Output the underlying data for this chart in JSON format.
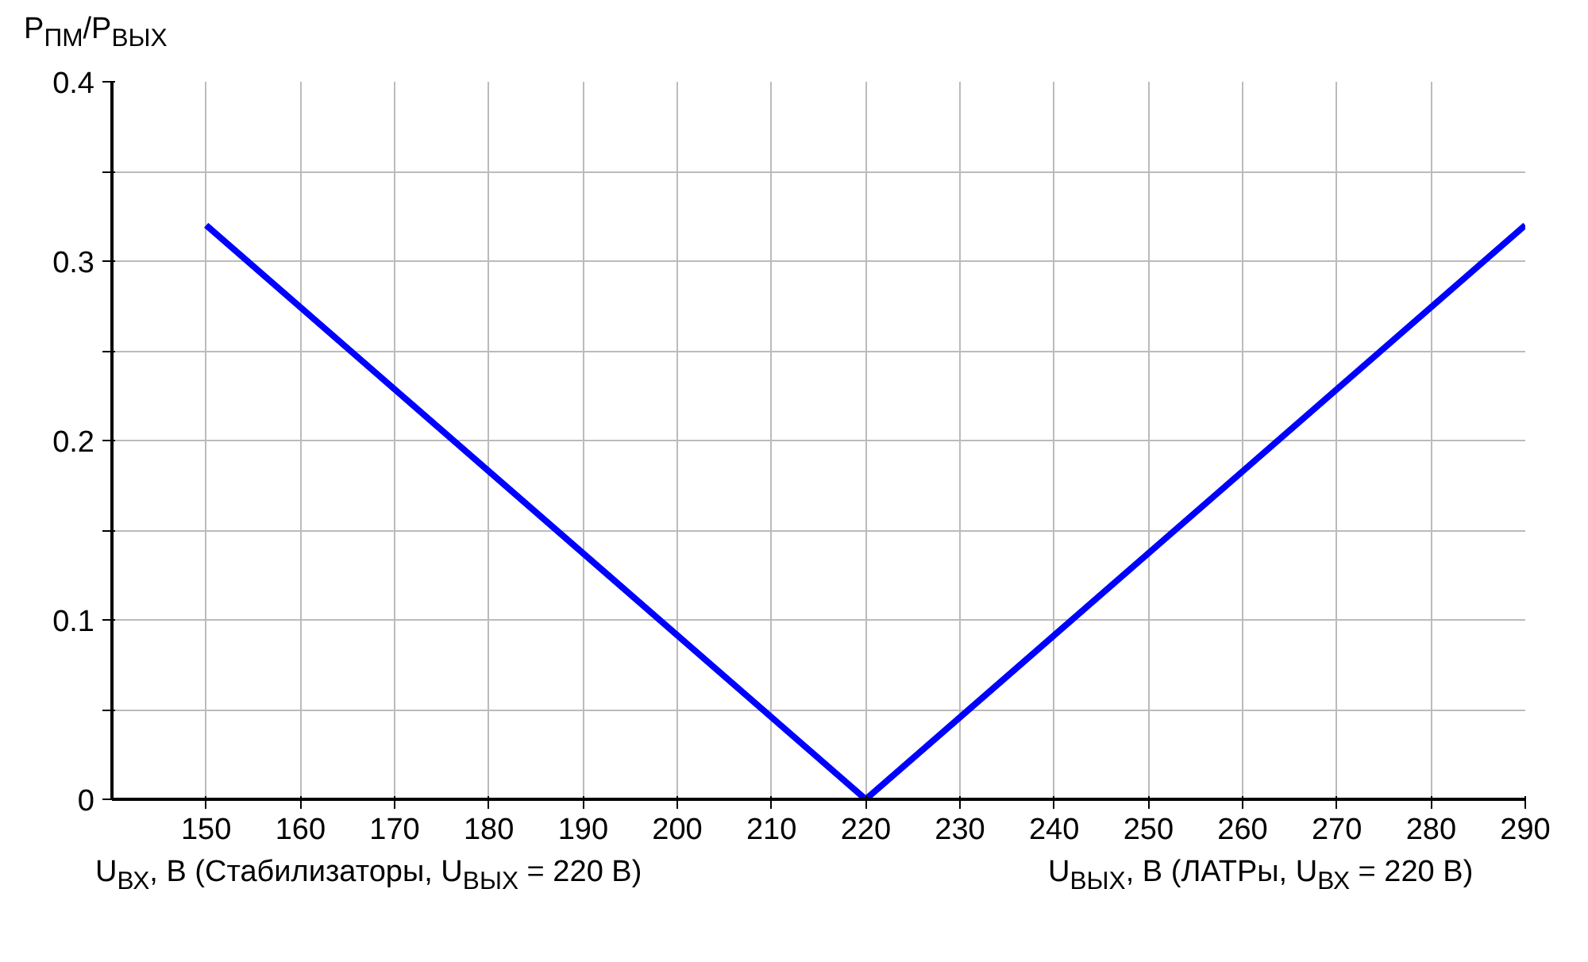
{
  "chart_data": {
    "type": "line",
    "ylabel": "P$_{ПМ}$/P$_{ВЫХ}$",
    "xlabel": "U$_{ВХ}$, В (Стабилизаторы, U$_{ВЫХ}$ = 220 В)",
    "annotations": [
      "U$_{ВЫХ}$, В (ЛАТРы, U$_{ВХ}$ = 220 В)"
    ],
    "x": [
      150,
      220,
      290
    ],
    "series": [
      {
        "color": "#0000ff",
        "values": [
          0.32,
          0,
          0.32
        ]
      }
    ],
    "xlim": [
      140,
      290
    ],
    "ylim": [
      0,
      0.4
    ],
    "xticks": [
      150,
      160,
      170,
      180,
      190,
      200,
      210,
      220,
      230,
      240,
      250,
      260,
      270,
      280,
      290
    ],
    "yticks": [
      0,
      {
        "value": 0.05,
        "label": null
      },
      0.1,
      {
        "value": 0.15,
        "label": null
      },
      0.2,
      {
        "value": 0.25,
        "label": null
      },
      0.3,
      {
        "value": 0.35,
        "label": null
      },
      0.4
    ],
    "grid": true,
    "marker": "none",
    "line_style": "solid"
  }
}
